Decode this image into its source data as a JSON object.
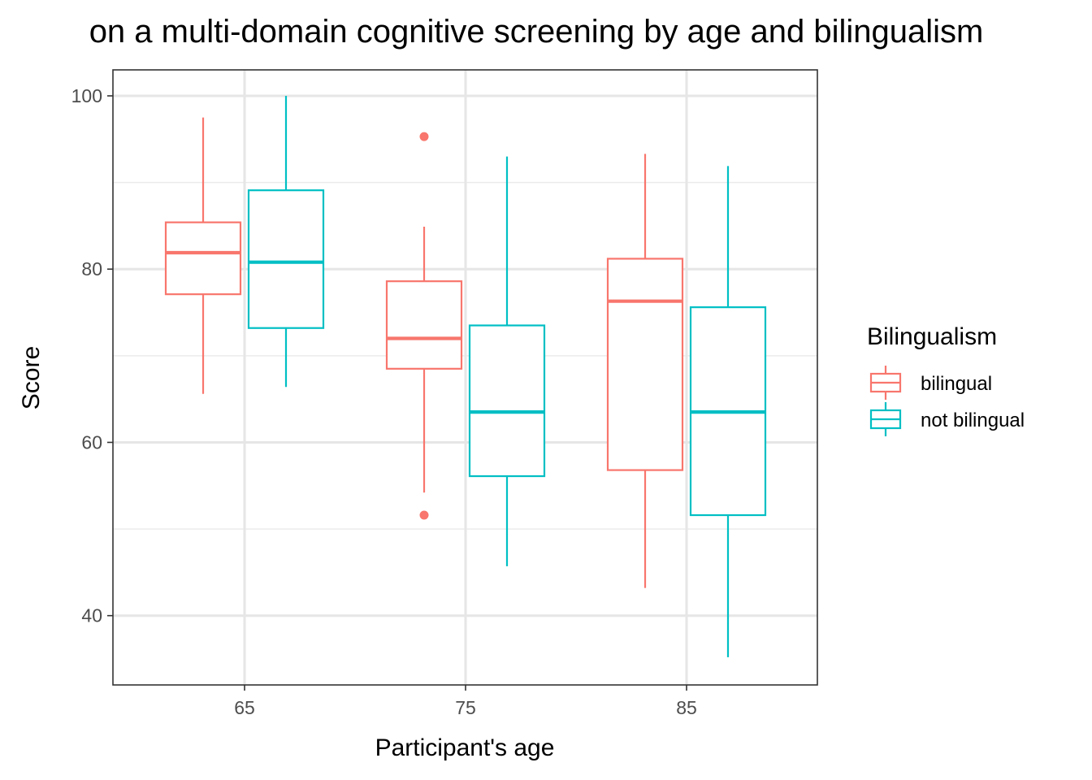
{
  "chart_data": {
    "type": "boxplot",
    "title": "on a multi-domain cognitive screening by age and bilingualism",
    "xlabel": "Participant's age",
    "ylabel": "Score",
    "categories": [
      "65",
      "75",
      "85"
    ],
    "ylim": [
      32,
      103
    ],
    "yticks": [
      40,
      60,
      80,
      100
    ],
    "grid": true,
    "legend": {
      "title": "Bilingualism",
      "position": "right"
    },
    "series": [
      {
        "name": "bilingual",
        "color": "#F8766D",
        "boxes": [
          {
            "category": "65",
            "whisker_low": 65.6,
            "q1": 77.1,
            "median": 81.9,
            "q3": 85.4,
            "whisker_high": 97.5,
            "outliers": []
          },
          {
            "category": "75",
            "whisker_low": 54.2,
            "q1": 68.5,
            "median": 72.0,
            "q3": 78.6,
            "whisker_high": 84.9,
            "outliers": [
              95.3,
              51.6
            ]
          },
          {
            "category": "85",
            "whisker_low": 43.2,
            "q1": 56.8,
            "median": 76.3,
            "q3": 81.2,
            "whisker_high": 93.3,
            "outliers": []
          }
        ]
      },
      {
        "name": "not bilingual",
        "color": "#00BFC4",
        "boxes": [
          {
            "category": "65",
            "whisker_low": 66.4,
            "q1": 73.2,
            "median": 80.8,
            "q3": 89.1,
            "whisker_high": 100.0,
            "outliers": []
          },
          {
            "category": "75",
            "whisker_low": 45.7,
            "q1": 56.1,
            "median": 63.5,
            "q3": 73.5,
            "whisker_high": 93.0,
            "outliers": []
          },
          {
            "category": "85",
            "whisker_low": 35.2,
            "q1": 51.6,
            "median": 63.5,
            "q3": 75.6,
            "whisker_high": 91.9,
            "outliers": []
          }
        ]
      }
    ]
  }
}
